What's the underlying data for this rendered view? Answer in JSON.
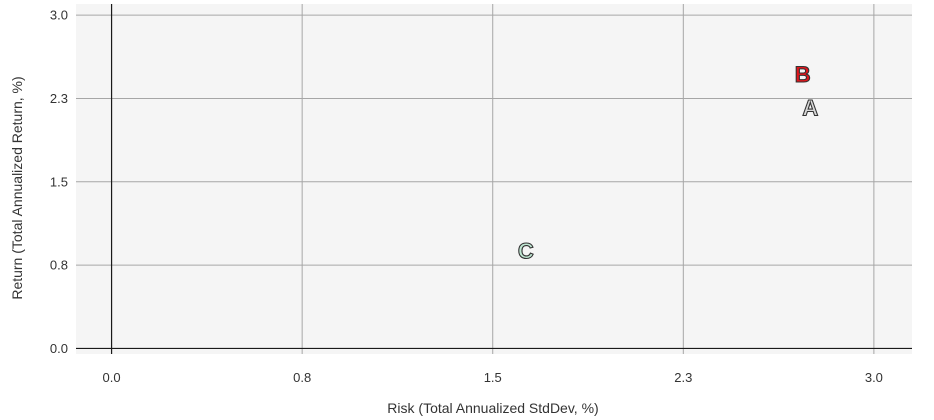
{
  "chart_data": {
    "type": "scatter",
    "xlabel": "Risk (Total Annualized StdDev, %)",
    "ylabel": "Return (Total Annualized Return, %)",
    "xlim": [
      -0.14,
      3.15
    ],
    "ylim": [
      -0.05,
      3.1
    ],
    "x_ticks": [
      {
        "value": 0.0,
        "label": "0.0"
      },
      {
        "value": 0.75,
        "label": "0.8"
      },
      {
        "value": 1.5,
        "label": "1.5"
      },
      {
        "value": 2.25,
        "label": "2.3"
      },
      {
        "value": 3.0,
        "label": "3.0"
      }
    ],
    "y_ticks": [
      {
        "value": 0.0,
        "label": "0.0"
      },
      {
        "value": 0.75,
        "label": "0.8"
      },
      {
        "value": 1.5,
        "label": "1.5"
      },
      {
        "value": 2.25,
        "label": "2.3"
      },
      {
        "value": 3.0,
        "label": "3.0"
      }
    ],
    "grid": true,
    "points": [
      {
        "label": "A",
        "x": 2.75,
        "y": 2.17,
        "color": "#d9d9d9"
      },
      {
        "label": "B",
        "x": 2.72,
        "y": 2.47,
        "color": "#e0161c"
      },
      {
        "label": "C",
        "x": 1.63,
        "y": 0.88,
        "color": "#bfe6d2"
      }
    ]
  }
}
